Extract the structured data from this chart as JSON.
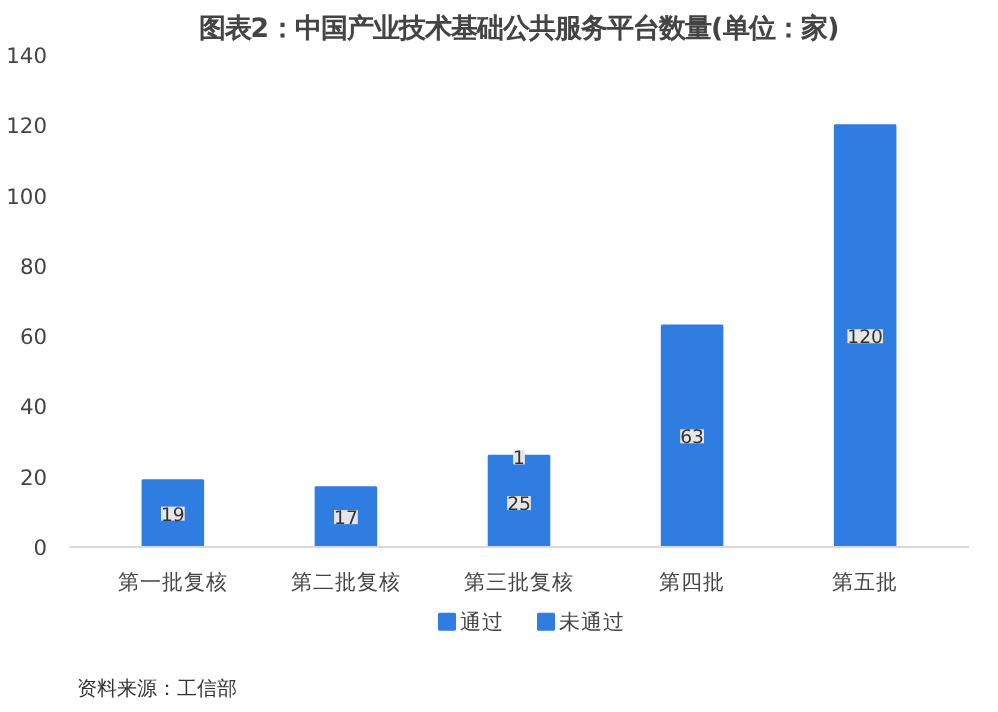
{
  "chart_data": {
    "type": "bar",
    "title": "图表2：中国产业技术基础公共服务平台数量(单位：家)",
    "categories": [
      "第一批复核",
      "第二批复核",
      "第三批复核",
      "第四批",
      "第五批"
    ],
    "series": [
      {
        "name": "通过",
        "color": "#2f7de1",
        "values": [
          19,
          17,
          25,
          63,
          120
        ]
      },
      {
        "name": "未通过",
        "color": "#2f7de1",
        "values": [
          null,
          null,
          1,
          null,
          null
        ]
      }
    ],
    "stacked": true,
    "ylim": [
      0,
      140
    ],
    "yticks": [
      0,
      20,
      40,
      60,
      80,
      100,
      120,
      140
    ],
    "grid": false,
    "legend": "bottom",
    "data_labels": true,
    "annotations": [
      "资料来源：工信部"
    ]
  }
}
